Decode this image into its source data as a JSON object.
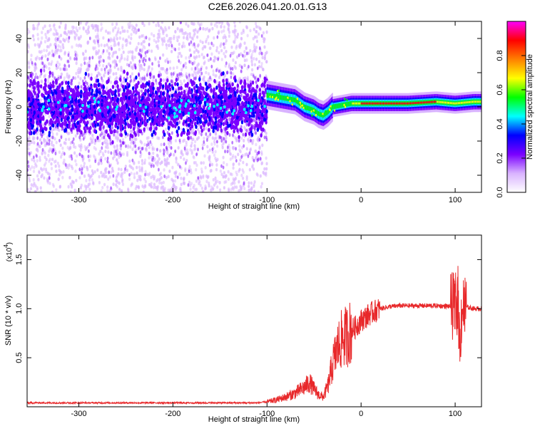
{
  "title": "C2E6.2026.041.20.01.G13",
  "chart_data": [
    {
      "type": "heatmap",
      "xlabel": "Height of straight line (km)",
      "ylabel": "Frequency (Hz)",
      "xlim": [
        -355,
        128
      ],
      "ylim": [
        -50,
        50
      ],
      "x_ticks": [
        -300,
        -200,
        -100,
        0,
        100
      ],
      "x_tick_labels": [
        "-300",
        "-200",
        "-100",
        "0",
        "100"
      ],
      "y_ticks": [
        -40,
        -20,
        0,
        20,
        40
      ],
      "y_tick_labels": [
        "-40",
        "-20",
        "0",
        "20",
        "40"
      ],
      "colorbar": {
        "label": "Normalized spectral amplitude",
        "range": [
          0,
          1
        ],
        "ticks": [
          0.0,
          0.2,
          0.4,
          0.6,
          0.8
        ],
        "tick_labels": [
          "0.0",
          "0.2",
          "0.4",
          "0.6",
          "0.8"
        ],
        "colors": [
          "#ffffff",
          "#d9b3ff",
          "#7a00ff",
          "#0000ff",
          "#00ffff",
          "#00ff00",
          "#ffff00",
          "#ff8000",
          "#ff0000",
          "#ff00ff"
        ]
      },
      "ridge": {
        "x": [
          -100,
          -90,
          -80,
          -70,
          -60,
          -50,
          -45,
          -40,
          -35,
          -30,
          -20,
          -10,
          0,
          20,
          50,
          80,
          100,
          120,
          128
        ],
        "frequency": [
          7,
          6,
          5,
          4,
          0,
          -2,
          -4,
          -5,
          -3,
          0,
          1,
          2,
          2,
          2,
          2,
          3,
          2,
          3,
          3
        ]
      },
      "noise_region": {
        "x_range": [
          -355,
          -100
        ],
        "frequency_spread": 8,
        "background_spread": 50
      }
    },
    {
      "type": "line",
      "xlabel": "Height of straight line (km)",
      "ylabel": "SNR (10 * v/v)",
      "y_multiplier": "(x10",
      "y_multiplier_exp": "4",
      "y_multiplier_close": ")",
      "xlim": [
        -355,
        128
      ],
      "ylim": [
        0,
        1.75
      ],
      "x_ticks": [
        -300,
        -200,
        -100,
        0,
        100
      ],
      "x_tick_labels": [
        "-300",
        "-200",
        "-100",
        "0",
        "100"
      ],
      "y_ticks": [
        0.5,
        1.0,
        1.5
      ],
      "y_tick_labels": [
        "0.5",
        "1.0",
        "1.5"
      ],
      "color": "#e8282a",
      "series": [
        {
          "x": [
            -355,
            -300,
            -200,
            -110,
            -100,
            -90,
            -80,
            -70,
            -60,
            -55,
            -50,
            -45,
            -40,
            -35,
            -30,
            -25,
            -20,
            -15,
            -10,
            -5,
            0,
            10,
            20,
            30,
            40,
            60,
            80,
            100,
            103,
            105,
            107,
            110,
            120,
            128
          ],
          "values": [
            0.04,
            0.04,
            0.04,
            0.04,
            0.05,
            0.07,
            0.1,
            0.14,
            0.2,
            0.25,
            0.18,
            0.12,
            0.1,
            0.22,
            0.45,
            0.6,
            0.7,
            0.72,
            0.78,
            0.82,
            0.88,
            0.95,
            1.0,
            1.02,
            1.03,
            1.03,
            1.03,
            1.02,
            1.1,
            0.6,
            1.0,
            1.02,
            1.0,
            1.0
          ]
        }
      ]
    }
  ]
}
